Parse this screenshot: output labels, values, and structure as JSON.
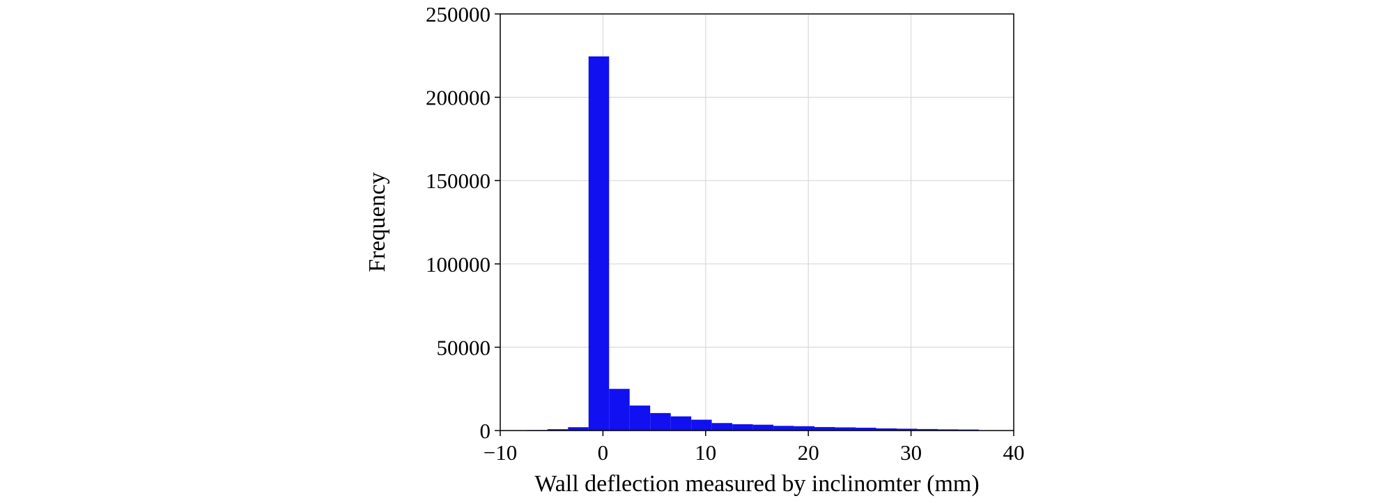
{
  "chart_data": {
    "type": "bar",
    "title": "",
    "xlabel": "Wall deflection measured by inclinomter (mm)",
    "ylabel": "Frequency",
    "xlim": [
      -10,
      40
    ],
    "ylim": [
      0,
      250000
    ],
    "x_ticks": [
      -10,
      0,
      10,
      20,
      30,
      40
    ],
    "x_tick_labels": [
      "−10",
      "0",
      "10",
      "20",
      "30",
      "40"
    ],
    "y_ticks": [
      0,
      50000,
      100000,
      150000,
      200000,
      250000
    ],
    "y_tick_labels": [
      "0",
      "50000",
      "100000",
      "150000",
      "200000",
      "250000"
    ],
    "grid": true,
    "legend": "none",
    "bar_color": "#1010f0",
    "bins": [
      {
        "x0": -7.4,
        "x1": -5.4,
        "count": 300
      },
      {
        "x0": -5.4,
        "x1": -3.4,
        "count": 800
      },
      {
        "x0": -3.4,
        "x1": -1.4,
        "count": 2000
      },
      {
        "x0": -1.4,
        "x1": 0.6,
        "count": 224500
      },
      {
        "x0": 0.6,
        "x1": 2.6,
        "count": 25000
      },
      {
        "x0": 2.6,
        "x1": 4.6,
        "count": 15000
      },
      {
        "x0": 4.6,
        "x1": 6.6,
        "count": 10500
      },
      {
        "x0": 6.6,
        "x1": 8.6,
        "count": 8500
      },
      {
        "x0": 8.6,
        "x1": 10.6,
        "count": 6500
      },
      {
        "x0": 10.6,
        "x1": 12.6,
        "count": 4500
      },
      {
        "x0": 12.6,
        "x1": 14.6,
        "count": 3800
      },
      {
        "x0": 14.6,
        "x1": 16.6,
        "count": 3500
      },
      {
        "x0": 16.6,
        "x1": 18.6,
        "count": 2800
      },
      {
        "x0": 18.6,
        "x1": 20.6,
        "count": 2600
      },
      {
        "x0": 20.6,
        "x1": 22.6,
        "count": 2100
      },
      {
        "x0": 22.6,
        "x1": 24.6,
        "count": 1900
      },
      {
        "x0": 24.6,
        "x1": 26.6,
        "count": 1700
      },
      {
        "x0": 26.6,
        "x1": 28.6,
        "count": 1300
      },
      {
        "x0": 28.6,
        "x1": 30.6,
        "count": 1100
      },
      {
        "x0": 30.6,
        "x1": 32.6,
        "count": 900
      },
      {
        "x0": 32.6,
        "x1": 34.6,
        "count": 700
      },
      {
        "x0": 34.6,
        "x1": 36.6,
        "count": 600
      }
    ]
  }
}
